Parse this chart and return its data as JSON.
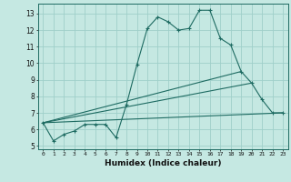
{
  "xlabel": "Humidex (Indice chaleur)",
  "bg_color": "#c5e8e2",
  "grid_color": "#9fcfca",
  "line_color": "#1e6b62",
  "xlim": [
    -0.5,
    23.5
  ],
  "ylim": [
    4.8,
    13.6
  ],
  "yticks": [
    5,
    6,
    7,
    8,
    9,
    10,
    11,
    12,
    13
  ],
  "xticks": [
    0,
    1,
    2,
    3,
    4,
    5,
    6,
    7,
    8,
    9,
    10,
    11,
    12,
    13,
    14,
    15,
    16,
    17,
    18,
    19,
    20,
    21,
    22,
    23
  ],
  "series": [
    [
      0,
      6.4
    ],
    [
      1,
      5.3
    ],
    [
      2,
      5.7
    ],
    [
      3,
      5.9
    ],
    [
      4,
      6.3
    ],
    [
      5,
      6.3
    ],
    [
      6,
      6.3
    ],
    [
      7,
      5.5
    ],
    [
      8,
      7.5
    ],
    [
      9,
      9.9
    ],
    [
      10,
      12.1
    ],
    [
      11,
      12.8
    ],
    [
      12,
      12.5
    ],
    [
      13,
      12.0
    ],
    [
      14,
      12.1
    ],
    [
      15,
      13.2
    ],
    [
      16,
      13.2
    ],
    [
      17,
      11.5
    ],
    [
      18,
      11.1
    ],
    [
      19,
      9.5
    ],
    [
      20,
      8.8
    ],
    [
      21,
      7.8
    ],
    [
      22,
      7.0
    ],
    [
      23,
      7.0
    ]
  ],
  "line2": [
    [
      0,
      6.4
    ],
    [
      23,
      7.0
    ]
  ],
  "line3": [
    [
      0,
      6.4
    ],
    [
      20,
      8.8
    ]
  ],
  "line4": [
    [
      0,
      6.4
    ],
    [
      19,
      9.5
    ]
  ]
}
